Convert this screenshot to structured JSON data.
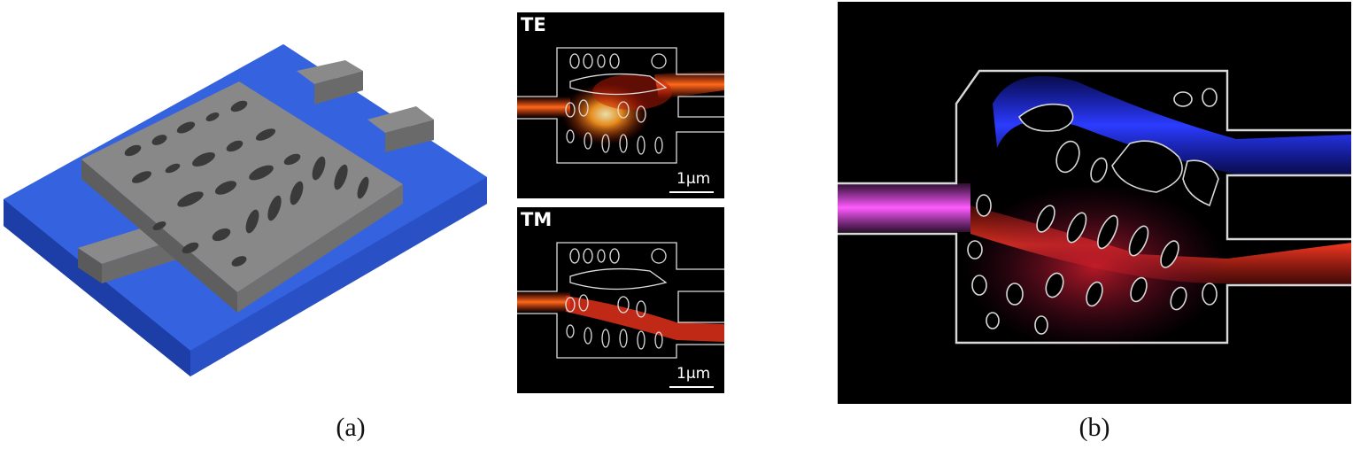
{
  "figure": {
    "panel_a_label": "(a)",
    "panel_b_label": "(b)",
    "te_label": "TE",
    "tm_label": "TM",
    "scale_text_te": "1μm",
    "scale_text_tm": "1μm"
  },
  "colors": {
    "substrate": "#2e5bd6",
    "device": "#808080",
    "field_hot": "#ff3b12",
    "field_core": "#fff3b0",
    "mode_blue": "#1f2bff",
    "mode_red": "#e8231a",
    "mode_magenta": "#e64df0"
  }
}
